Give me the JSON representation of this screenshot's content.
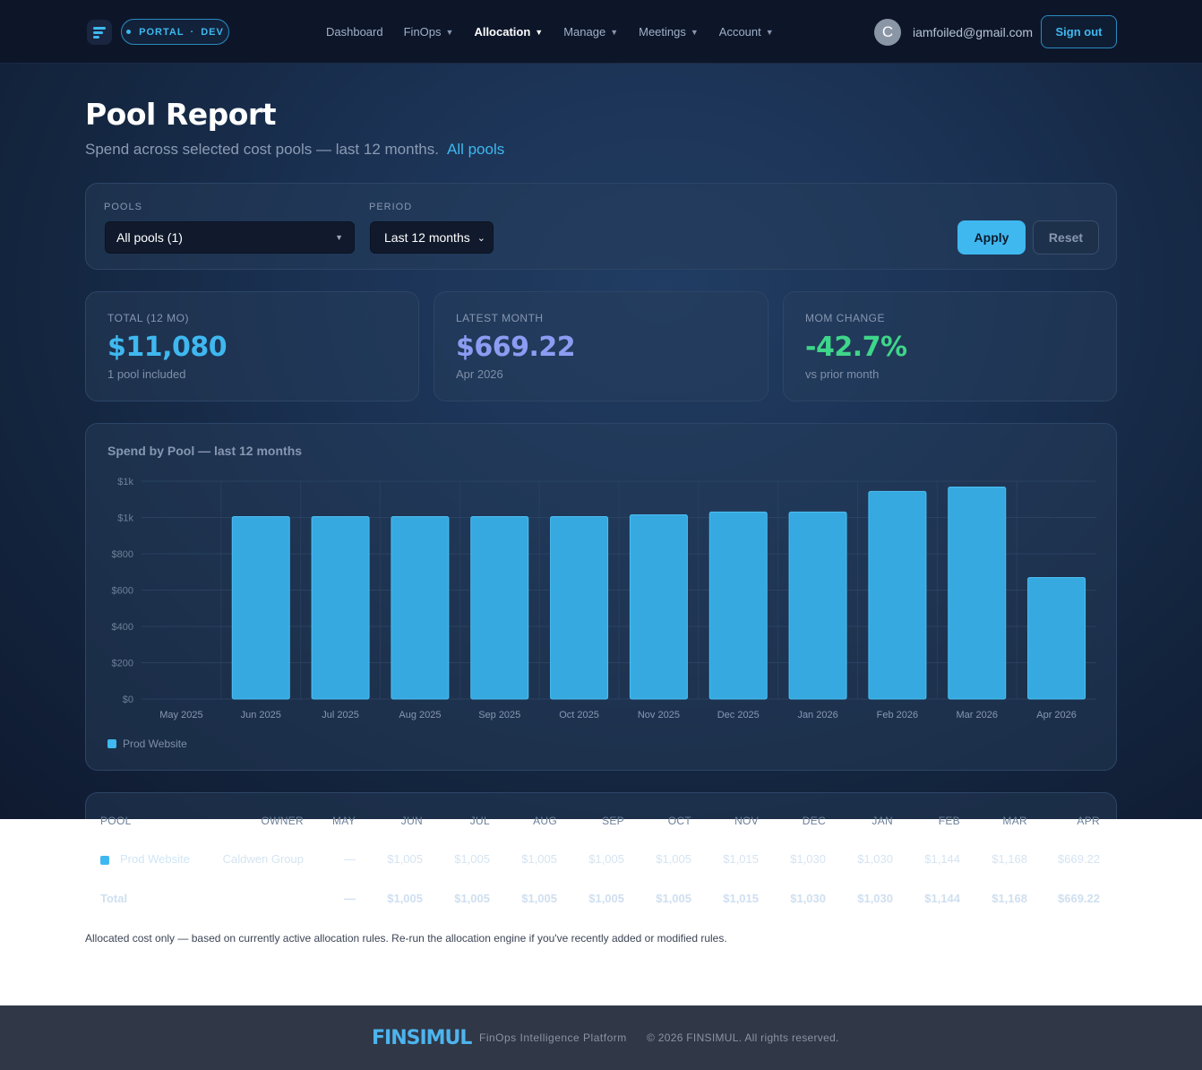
{
  "nav": {
    "env_left": "PORTAL",
    "env_sep": "·",
    "env_right": "DEV",
    "items": [
      {
        "label": "Dashboard",
        "dropdown": false,
        "active": false
      },
      {
        "label": "FinOps",
        "dropdown": true,
        "active": false
      },
      {
        "label": "Allocation",
        "dropdown": true,
        "active": true
      },
      {
        "label": "Manage",
        "dropdown": true,
        "active": false
      },
      {
        "label": "Meetings",
        "dropdown": true,
        "active": false
      },
      {
        "label": "Account",
        "dropdown": true,
        "active": false
      }
    ],
    "avatar_initial": "C",
    "user_email": "iamfoiled@gmail.com",
    "signout_label": "Sign out"
  },
  "header": {
    "title": "Pool Report",
    "subtitle": "Spend across selected cost pools — last 12 months.",
    "scope_link": "All pools"
  },
  "filters": {
    "pools_label": "POOLS",
    "pools_value": "All pools (1)",
    "period_label": "PERIOD",
    "period_value": "Last 12 months",
    "apply_label": "Apply",
    "reset_label": "Reset"
  },
  "stats": [
    {
      "label": "TOTAL (12 MO)",
      "value": "$11,080",
      "sub": "1 pool included",
      "color": "#3fb8f0"
    },
    {
      "label": "LATEST MONTH",
      "value": "$669.22",
      "sub": "Apr 2026",
      "color": "#8c9cf2"
    },
    {
      "label": "MOM CHANGE",
      "value": "-42.7%",
      "sub": "vs prior month",
      "color": "#3ed68a"
    }
  ],
  "chart_data": {
    "type": "bar",
    "title": "Spend by Pool — last 12 months",
    "categories": [
      "May 2025",
      "Jun 2025",
      "Jul 2025",
      "Aug 2025",
      "Sep 2025",
      "Oct 2025",
      "Nov 2025",
      "Dec 2025",
      "Jan 2026",
      "Feb 2026",
      "Mar 2026",
      "Apr 2026"
    ],
    "series": [
      {
        "name": "Prod Website",
        "color": "#35a9e0",
        "values": [
          0,
          1005,
          1005,
          1005,
          1005,
          1005,
          1015,
          1030,
          1030,
          1144,
          1168,
          669.22
        ]
      }
    ],
    "y_ticks": [
      {
        "value": 0,
        "label": "$0"
      },
      {
        "value": 200,
        "label": "$200"
      },
      {
        "value": 400,
        "label": "$400"
      },
      {
        "value": 600,
        "label": "$600"
      },
      {
        "value": 800,
        "label": "$800"
      },
      {
        "value": 1000,
        "label": "$1k"
      },
      {
        "value": 1200,
        "label": "$1k"
      }
    ],
    "ylim": [
      0,
      1200
    ],
    "grid": true,
    "legend_position": "bottom-left"
  },
  "table": {
    "headers": [
      "POOL",
      "OWNER",
      "MAY",
      "JUN",
      "JUL",
      "AUG",
      "SEP",
      "OCT",
      "NOV",
      "DEC",
      "JAN",
      "FEB",
      "MAR",
      "APR"
    ],
    "rows": [
      {
        "pool": "Prod Website",
        "owner": "Caldwen Group",
        "values": [
          "—",
          "$1,005",
          "$1,005",
          "$1,005",
          "$1,005",
          "$1,005",
          "$1,015",
          "$1,030",
          "$1,030",
          "$1,144",
          "$1,168",
          "$669.22"
        ]
      }
    ],
    "total": {
      "label": "Total",
      "values": [
        "—",
        "$1,005",
        "$1,005",
        "$1,005",
        "$1,005",
        "$1,005",
        "$1,015",
        "$1,030",
        "$1,030",
        "$1,144",
        "$1,168",
        "$669.22"
      ]
    }
  },
  "footnote": "Allocated cost only — based on currently active allocation rules. Re-run the allocation engine if you've recently added or modified rules.",
  "footer": {
    "brand": "FINSIMUL",
    "tagline": "FinOps Intelligence Platform",
    "copyright": "© 2026 FINSIMUL. All rights reserved."
  }
}
